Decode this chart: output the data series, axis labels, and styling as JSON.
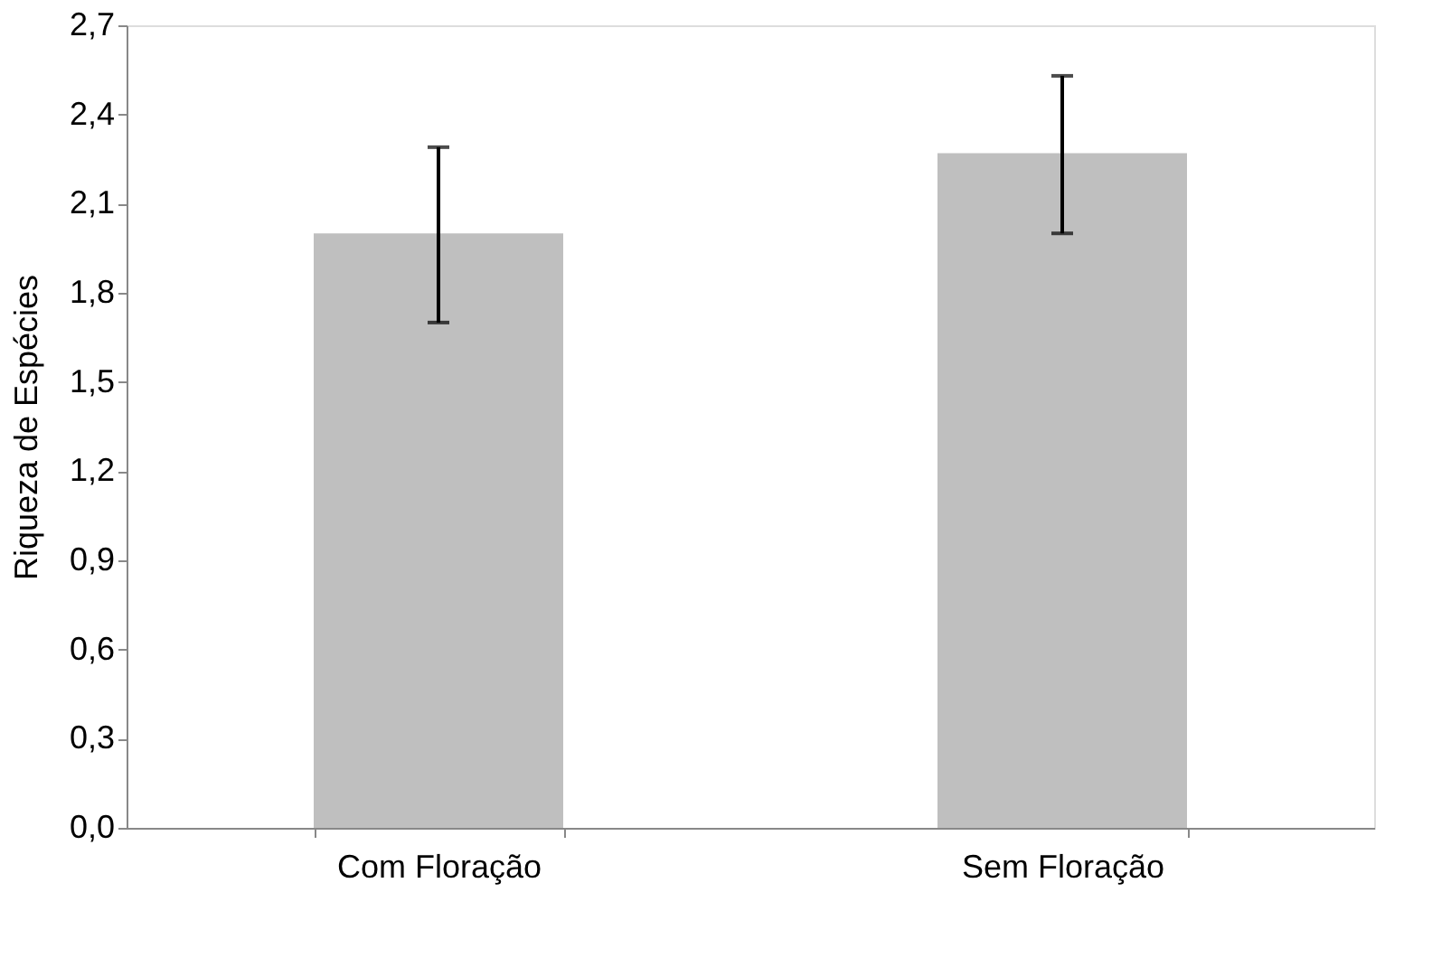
{
  "chart_data": {
    "type": "bar",
    "ylabel": "Riqueza de Espécies",
    "categories": [
      "Com Floração",
      "Sem Floração"
    ],
    "values": [
      2.0,
      2.27
    ],
    "errors": [
      [
        1.7,
        2.29
      ],
      [
        2.0,
        2.53
      ]
    ],
    "color": "#bfbfbf",
    "ylim": [
      0,
      2.7
    ],
    "yticks": [
      {
        "value": 0,
        "label": "0,0"
      },
      {
        "value": 0.3,
        "label": "0,3"
      },
      {
        "value": 0.6,
        "label": "0,6"
      },
      {
        "value": 0.9,
        "label": "0,9"
      },
      {
        "value": 1.2,
        "label": "1,2"
      },
      {
        "value": 1.5,
        "label": "1,5"
      },
      {
        "value": 1.8,
        "label": "1,8"
      },
      {
        "value": 2.1,
        "label": "2,1"
      },
      {
        "value": 2.4,
        "label": "2,4"
      },
      {
        "value": 2.7,
        "label": "2,7"
      }
    ],
    "grid": false
  }
}
